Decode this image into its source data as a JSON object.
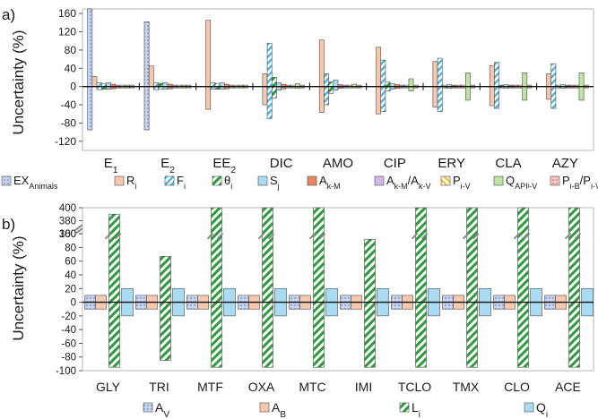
{
  "chart_data": [
    {
      "panel": "a)",
      "type": "bar",
      "ylabel": "Uncertainty (%)",
      "ylim": [
        -140,
        170
      ],
      "yticks": [
        -120,
        -80,
        -40,
        0,
        40,
        80,
        120,
        160
      ],
      "categories": [
        "E1",
        "E2",
        "EE2",
        "DIC",
        "AMO",
        "CIP",
        "ERY",
        "CLA",
        "AZY"
      ],
      "legend_position": "bottom",
      "series": [
        {
          "name": "EX_Animals",
          "color": "#9fb3dc",
          "pattern": "dots",
          "values": [
            [
              -95,
              170
            ],
            [
              -95,
              142
            ],
            null,
            null,
            null,
            null,
            null,
            null,
            null
          ]
        },
        {
          "name": "R_i",
          "color": "#f7c8ae",
          "pattern": "solid",
          "values": [
            [
              0,
              22
            ],
            [
              0,
              45
            ],
            [
              -50,
              145
            ],
            [
              -40,
              28
            ],
            [
              -57,
              102
            ],
            [
              -60,
              86
            ],
            [
              -45,
              55
            ],
            [
              -42,
              46
            ],
            [
              -28,
              28
            ]
          ]
        },
        {
          "name": "F_i",
          "color": "#4fb9e3",
          "pattern": "diag",
          "values": [
            [
              -7,
              8
            ],
            [
              -7,
              8
            ],
            [
              -6,
              8
            ],
            [
              -70,
              95
            ],
            [
              -40,
              28
            ],
            [
              -55,
              58
            ],
            [
              -55,
              62
            ],
            [
              -48,
              53
            ],
            [
              -48,
              50
            ]
          ]
        },
        {
          "name": "θ_i",
          "color": "#2e9a3e",
          "pattern": "hatch",
          "values": [
            [
              -6,
              7
            ],
            [
              -6,
              7
            ],
            [
              -6,
              7
            ],
            [
              -25,
              20
            ],
            [
              -15,
              10
            ],
            [
              -10,
              10
            ],
            [
              -3,
              3
            ],
            [
              -3,
              3
            ],
            [
              -3,
              3
            ]
          ]
        },
        {
          "name": "S_j",
          "color": "#a9dcf3",
          "pattern": "solid",
          "values": [
            [
              -6,
              8
            ],
            [
              -6,
              8
            ],
            [
              -6,
              8
            ],
            [
              -8,
              8
            ],
            [
              -8,
              14
            ],
            [
              -6,
              6
            ],
            [
              -4,
              4
            ],
            [
              -4,
              4
            ],
            [
              -4,
              4
            ]
          ]
        },
        {
          "name": "A_k-M",
          "color": "#e8875e",
          "pattern": "solid",
          "values": [
            [
              -5,
              5
            ],
            [
              -5,
              5
            ],
            [
              -5,
              5
            ],
            [
              -5,
              5
            ],
            [
              -4,
              4
            ],
            [
              -4,
              4
            ],
            [
              -3,
              3
            ],
            [
              -3,
              3
            ],
            [
              -3,
              3
            ]
          ]
        },
        {
          "name": "A_k-M/A_k-V",
          "color": "#d4b7e6",
          "pattern": "solid",
          "values": [
            [
              -3,
              3
            ],
            [
              -3,
              3
            ],
            [
              -3,
              3
            ],
            [
              -3,
              3
            ],
            [
              -3,
              3
            ],
            [
              -3,
              3
            ],
            [
              -3,
              3
            ],
            [
              -3,
              3
            ],
            [
              -3,
              3
            ]
          ]
        },
        {
          "name": "P_i-V",
          "color": "#f3d77a",
          "pattern": "diag",
          "values": [
            [
              -3,
              3
            ],
            [
              -3,
              3
            ],
            [
              -3,
              3
            ],
            [
              -3,
              3
            ],
            [
              -3,
              3
            ],
            [
              -3,
              3
            ],
            [
              -3,
              3
            ],
            [
              -3,
              3
            ],
            [
              -3,
              3
            ]
          ]
        },
        {
          "name": "Q_APIi-V",
          "color": "#bfe3a3",
          "pattern": "solid",
          "values": [
            [
              -3,
              3
            ],
            [
              -3,
              3
            ],
            [
              -3,
              3
            ],
            [
              -4,
              6
            ],
            [
              -3,
              5
            ],
            [
              -10,
              17
            ],
            [
              -30,
              30
            ],
            [
              -30,
              30
            ],
            [
              -30,
              30
            ]
          ]
        },
        {
          "name": "P_i-B/P_i-V",
          "color": "#f2a3a3",
          "pattern": "dots",
          "values": [
            [
              -3,
              3
            ],
            [
              -3,
              3
            ],
            [
              -3,
              3
            ],
            [
              -3,
              3
            ],
            [
              -3,
              3
            ],
            [
              -3,
              3
            ],
            [
              -3,
              3
            ],
            [
              -3,
              3
            ],
            [
              -3,
              3
            ]
          ]
        }
      ]
    },
    {
      "panel": "b)",
      "type": "bar",
      "ylabel": "Uncertainty (%)",
      "ylim": [
        -100,
        400
      ],
      "axis_break": "between 100 and 360",
      "yticks": [
        -100,
        -80,
        -60,
        -40,
        -20,
        0,
        20,
        40,
        60,
        80,
        100,
        360,
        380,
        400
      ],
      "categories": [
        "GLY",
        "TRI",
        "MTF",
        "OXA",
        "MTC",
        "IMI",
        "TCLO",
        "TMX",
        "CLO",
        "ACE"
      ],
      "legend_position": "bottom",
      "series": [
        {
          "name": "A_V",
          "color": "#9fb3dc",
          "pattern": "dots",
          "values": [
            [
              -10,
              10
            ],
            [
              -10,
              10
            ],
            [
              -10,
              10
            ],
            [
              -10,
              10
            ],
            [
              -10,
              10
            ],
            [
              -10,
              10
            ],
            [
              -10,
              10
            ],
            [
              -10,
              10
            ],
            [
              -10,
              10
            ],
            [
              -10,
              10
            ]
          ]
        },
        {
          "name": "A_B",
          "color": "#f7c8ae",
          "pattern": "solid",
          "values": [
            [
              -10,
              10
            ],
            [
              -10,
              10
            ],
            [
              -10,
              10
            ],
            [
              -10,
              10
            ],
            [
              -10,
              10
            ],
            [
              -10,
              10
            ],
            [
              -10,
              10
            ],
            [
              -10,
              10
            ],
            [
              -10,
              10
            ],
            [
              -10,
              10
            ]
          ]
        },
        {
          "name": "L_i",
          "color": "#2e9a3e",
          "pattern": "hatch",
          "values": [
            [
              -95,
              390
            ],
            [
              -85,
              67
            ],
            [
              -95,
              400
            ],
            [
              -95,
              400
            ],
            [
              -95,
              400
            ],
            [
              -95,
              92
            ],
            [
              -95,
              400
            ],
            [
              -95,
              400
            ],
            [
              -95,
              400
            ],
            [
              -95,
              400
            ]
          ]
        },
        {
          "name": "Q_i",
          "color": "#a9dcf3",
          "pattern": "solid",
          "values": [
            [
              -20,
              20
            ],
            [
              -20,
              20
            ],
            [
              -20,
              20
            ],
            [
              -20,
              20
            ],
            [
              -20,
              20
            ],
            [
              -20,
              20
            ],
            [
              -20,
              20
            ],
            [
              -20,
              20
            ],
            [
              -20,
              20
            ],
            [
              -20,
              20
            ]
          ]
        }
      ]
    }
  ],
  "legend_a": [
    {
      "key": "ex",
      "main": "EX",
      "sub": "Animals",
      "rest": ""
    },
    {
      "key": "r",
      "main": "R",
      "sub": "i",
      "rest": ""
    },
    {
      "key": "f",
      "main": "F",
      "sub": "i",
      "rest": ""
    },
    {
      "key": "t",
      "main": "θ",
      "sub": "i",
      "rest": ""
    },
    {
      "key": "s",
      "main": "S",
      "sub": "j",
      "rest": ""
    },
    {
      "key": "ak",
      "main": "A",
      "sub": "k-M",
      "rest": ""
    },
    {
      "key": "akk",
      "main": "A",
      "sub": "k-M",
      "rest": "/A",
      "sub2": "k-V"
    },
    {
      "key": "p",
      "main": "P",
      "sub": "i-V",
      "rest": ""
    },
    {
      "key": "q",
      "main": "Q",
      "sub": "API",
      "sub2i": "i",
      "rest2": "-V"
    },
    {
      "key": "pb",
      "main": "P",
      "sub": "i-B",
      "rest": "/P",
      "sub2": "i-V"
    }
  ],
  "legend_b": [
    {
      "main": "A",
      "sub": "V"
    },
    {
      "main": "A",
      "sub": "B"
    },
    {
      "main": "L",
      "sub": "i"
    },
    {
      "main": "Q",
      "sub": "i"
    }
  ],
  "xlabels_a": [
    {
      "main": "E",
      "sub": "1"
    },
    {
      "main": "E",
      "sub": "2"
    },
    {
      "main": "EE",
      "sub": "2"
    },
    {
      "main": "DIC",
      "sub": ""
    },
    {
      "main": "AMO",
      "sub": ""
    },
    {
      "main": "CIP",
      "sub": ""
    },
    {
      "main": "ERY",
      "sub": ""
    },
    {
      "main": "CLA",
      "sub": ""
    },
    {
      "main": "AZY",
      "sub": ""
    }
  ]
}
